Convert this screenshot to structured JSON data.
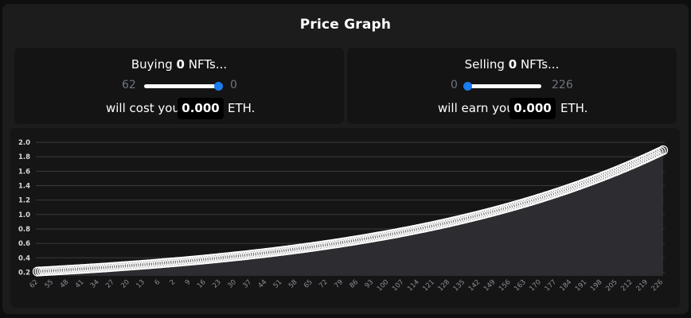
{
  "title": "Price Graph",
  "buy": {
    "heading_prefix": "Buying",
    "count": "0",
    "heading_suffix": "NFTs...",
    "range_min": "62",
    "range_max": "0",
    "slider_fraction": 1.0,
    "cost_prefix": "will cost you",
    "cost_value": "0.000",
    "cost_suffix": "ETH."
  },
  "sell": {
    "heading_prefix": "Selling",
    "count": "0",
    "heading_suffix": "NFTs...",
    "range_min": "0",
    "range_max": "226",
    "slider_fraction": 0.0,
    "cost_prefix": "will earn you",
    "cost_value": "0.000",
    "cost_suffix": "ETH."
  },
  "colors": {
    "accent": "#1a7cf0",
    "curve_fill": "#2d2d31",
    "marker_stroke": "#ffffff"
  },
  "chart_data": {
    "type": "area",
    "x_ticks": [
      "62",
      "55",
      "48",
      "41",
      "34",
      "27",
      "20",
      "13",
      "6",
      "2",
      "9",
      "16",
      "23",
      "30",
      "37",
      "44",
      "51",
      "58",
      "65",
      "72",
      "79",
      "86",
      "93",
      "100",
      "107",
      "114",
      "121",
      "128",
      "135",
      "142",
      "149",
      "156",
      "163",
      "170",
      "177",
      "184",
      "191",
      "198",
      "205",
      "212",
      "219",
      "226"
    ],
    "y_ticks": [
      "2.0",
      "1.8",
      "1.6",
      "1.4",
      "1.2",
      "1.0",
      "0.8",
      "0.6",
      "0.4",
      "0.2"
    ],
    "ylim": [
      0.15,
      2.0
    ],
    "curve": {
      "points": 289,
      "y_start": 0.21,
      "y_end": 1.89
    },
    "grid": true,
    "legend": "none"
  }
}
